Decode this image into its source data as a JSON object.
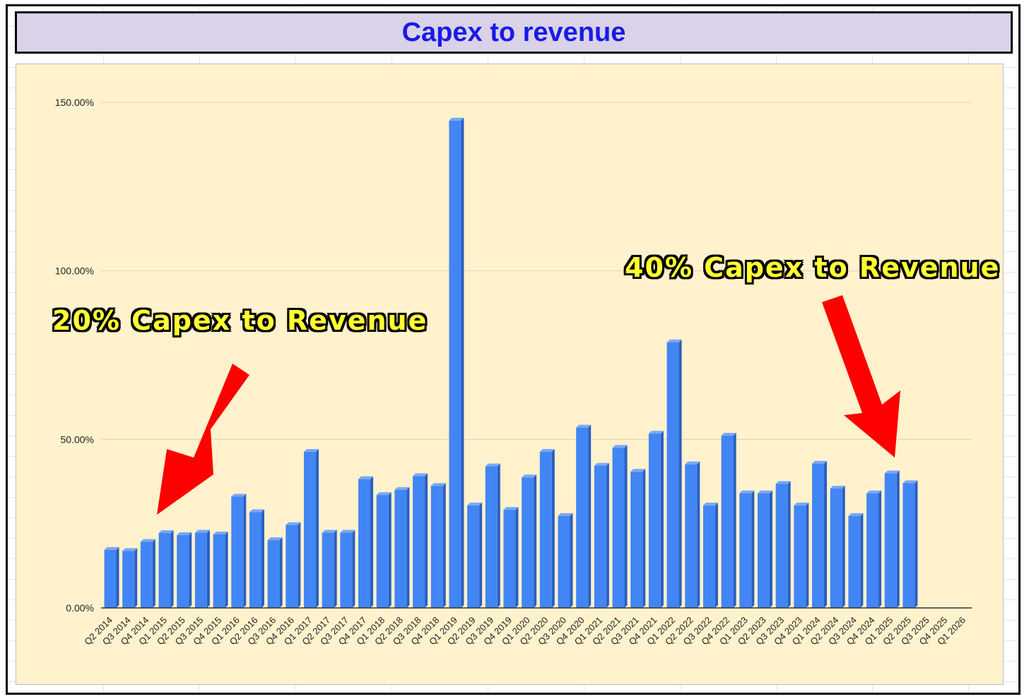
{
  "chart_data": {
    "type": "bar",
    "title": "Capex to revenue",
    "xlabel": "",
    "ylabel": "",
    "ylim": [
      0,
      150
    ],
    "yticks": [
      "0.00%",
      "50.00%",
      "100.00%",
      "150.00%"
    ],
    "ytick_values": [
      0,
      50,
      100,
      150
    ],
    "grid": true,
    "legend": "none",
    "bar_color": "#4285f4",
    "categories": [
      "Q2 2014",
      "Q3 2014",
      "Q4 2014",
      "Q1 2015",
      "Q2 2015",
      "Q3 2015",
      "Q4 2015",
      "Q1 2016",
      "Q2 2016",
      "Q3 2016",
      "Q4 2016",
      "Q1 2017",
      "Q2 2017",
      "Q3 2017",
      "Q4 2017",
      "Q1 2018",
      "Q2 2018",
      "Q3 2018",
      "Q4 2018",
      "Q1 2019",
      "Q2 2019",
      "Q3 2019",
      "Q4 2019",
      "Q1 2020",
      "Q2 2020",
      "Q3 2020",
      "Q4 2020",
      "Q1 2021",
      "Q2 2021",
      "Q3 2021",
      "Q4 2021",
      "Q1 2022",
      "Q2 2022",
      "Q3 2022",
      "Q4 2022",
      "Q1 2023",
      "Q2 2023",
      "Q3 2023",
      "Q4 2023",
      "Q1 2024",
      "Q2 2024",
      "Q3 2024",
      "Q4 2024",
      "Q1 2025",
      "Q2 2025",
      "Q3 2025",
      "Q4 2025",
      "Q1 2026"
    ],
    "values": [
      17.2,
      16.9,
      19.6,
      22.2,
      21.6,
      22.3,
      21.8,
      33.0,
      28.4,
      20.1,
      24.6,
      46.3,
      22.3,
      22.3,
      38.2,
      33.5,
      35.0,
      39.1,
      36.2,
      144.6,
      30.4,
      42.0,
      29.1,
      38.7,
      46.3,
      27.3,
      53.5,
      42.2,
      47.5,
      40.4,
      51.7,
      78.8,
      42.6,
      30.4,
      51.1,
      34.0,
      34.0,
      36.8,
      30.4,
      42.8,
      35.4,
      27.3,
      34.0,
      39.9,
      37.0,
      null,
      null,
      null
    ],
    "annotations": [
      {
        "text": "20% Capex to Revenue",
        "color": "#ffff33"
      },
      {
        "text": "40% Capex to Revenue",
        "color": "#ffff33"
      }
    ],
    "arrow_color": "#ff0000"
  }
}
